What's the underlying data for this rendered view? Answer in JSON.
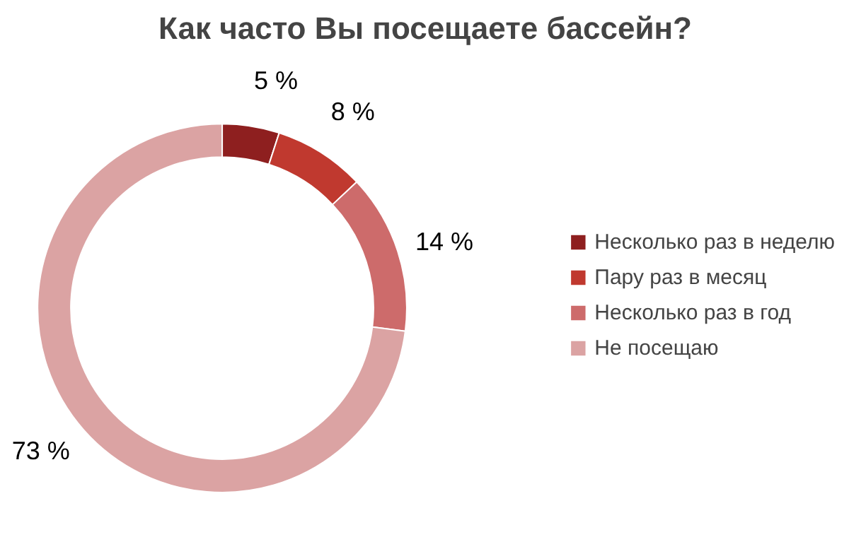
{
  "chart_data": {
    "type": "donut",
    "title": "Как часто Вы посещаете бассейн?",
    "categories": [
      "Несколько раз в неделю",
      "Пару раз в месяц",
      "Несколько раз в год",
      "Не посещаю"
    ],
    "values": [
      5,
      8,
      14,
      73
    ],
    "colors": [
      "#8e1f1f",
      "#c0392f",
      "#cd6b6b",
      "#dba3a3"
    ],
    "value_labels": [
      "5 %",
      "8 %",
      "14 %",
      "73 %"
    ],
    "legend": "right"
  }
}
